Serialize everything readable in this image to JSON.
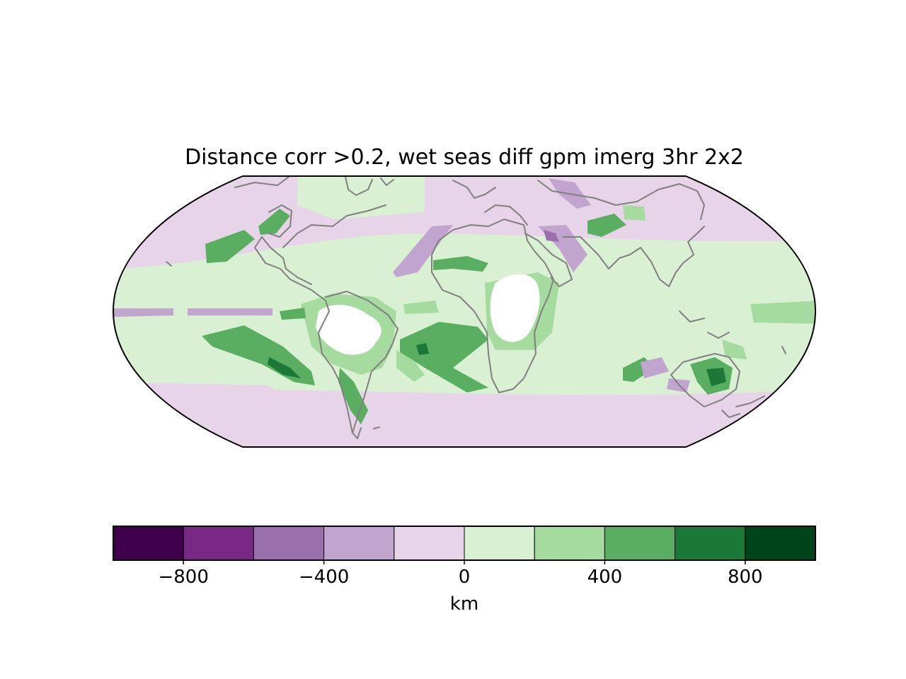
{
  "title": "Distance corr >0.2, wet seas diff gpm imerg 3hr 2x2",
  "projection": "robinson",
  "colorbar": {
    "unit": "km",
    "range": [
      -1000,
      1000
    ],
    "bins": [
      {
        "from": -1000,
        "to": -800,
        "color": "#40004b"
      },
      {
        "from": -800,
        "to": -600,
        "color": "#762a83"
      },
      {
        "from": -600,
        "to": -400,
        "color": "#9970ab"
      },
      {
        "from": -400,
        "to": -200,
        "color": "#c2a5cf"
      },
      {
        "from": -200,
        "to": 0,
        "color": "#e7d4e8"
      },
      {
        "from": 0,
        "to": 200,
        "color": "#d9f0d3"
      },
      {
        "from": 200,
        "to": 400,
        "color": "#a6dba0"
      },
      {
        "from": 400,
        "to": 600,
        "color": "#5aae61"
      },
      {
        "from": 600,
        "to": 800,
        "color": "#1b7837"
      },
      {
        "from": 800,
        "to": 1000,
        "color": "#00441b"
      }
    ],
    "ticks": [
      {
        "value": -800,
        "label": "−800"
      },
      {
        "value": -400,
        "label": "−400"
      },
      {
        "value": 0,
        "label": "0"
      },
      {
        "value": 400,
        "label": "400"
      },
      {
        "value": 800,
        "label": "800"
      }
    ]
  },
  "map_colors": {
    "coastline": "#808080",
    "missing": "#ffffff",
    "outline": "#000000"
  }
}
